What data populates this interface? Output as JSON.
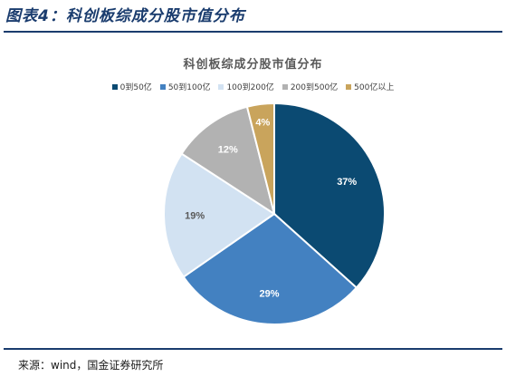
{
  "figure_title": "图表4：科创板综成分股市值分布",
  "source": "来源：wind，国金证券研究所",
  "chart_data": {
    "type": "pie",
    "title": "科创板综成分股市值分布",
    "legend_position": "top",
    "categories": [
      "0到50亿",
      "50到100亿",
      "100到200亿",
      "200到500亿",
      "500亿以上"
    ],
    "values": [
      37,
      29,
      19,
      12,
      4
    ],
    "labels": [
      "37%",
      "29%",
      "19%",
      "12%",
      "4%"
    ],
    "colors": [
      "#0b4a72",
      "#4381c1",
      "#d2e2f2",
      "#b2b2b2",
      "#c9a45c"
    ]
  }
}
